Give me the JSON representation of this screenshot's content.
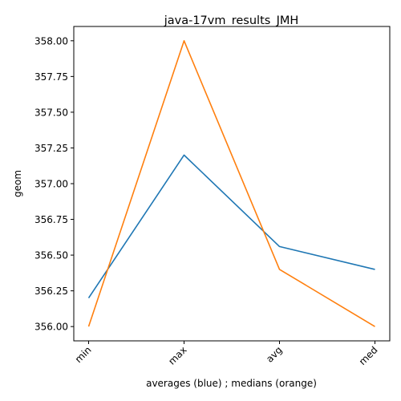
{
  "chart_data": {
    "type": "line",
    "title": "java-17vm_results_JMH",
    "xlabel": "averages (blue) ; medians (orange)",
    "ylabel": "geom",
    "categories": [
      "min",
      "max",
      "avg",
      "med"
    ],
    "series": [
      {
        "color": "#1f77b4",
        "values": [
          356.2,
          357.2,
          356.56,
          356.4
        ]
      },
      {
        "color": "#ff7f0e",
        "values": [
          356.0,
          358.0,
          356.4,
          356.0
        ]
      }
    ],
    "yticks": [
      "356.00",
      "356.25",
      "356.50",
      "356.75",
      "357.00",
      "357.25",
      "357.50",
      "357.75",
      "358.00"
    ],
    "ylim": [
      355.9,
      358.1
    ],
    "grid": false,
    "legend": "none"
  }
}
